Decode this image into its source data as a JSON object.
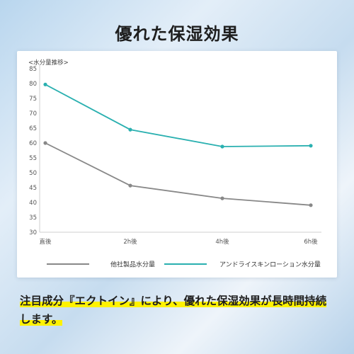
{
  "page": {
    "title": "優れた保湿効果",
    "caption": "注目成分『エクトイン』により、優れた保湿効果が長時間持続します。"
  },
  "chart_data": {
    "type": "line",
    "ylabel": "<水分量推移>",
    "categories": [
      "直後",
      "2h後",
      "4h後",
      "6h後"
    ],
    "ylim": [
      30,
      85
    ],
    "yticks": [
      30,
      35,
      40,
      45,
      50,
      55,
      60,
      65,
      70,
      75,
      80,
      85
    ],
    "grid": false,
    "legend_position": "bottom",
    "series": [
      {
        "name": "他社製品水分量",
        "values": [
          60,
          45.7,
          41.4,
          39.1
        ],
        "color": "#888888"
      },
      {
        "name": "アンドライスキンローション水分量",
        "values": [
          79.7,
          64.5,
          58.8,
          59.1
        ],
        "color": "#2ab0b0"
      }
    ]
  }
}
